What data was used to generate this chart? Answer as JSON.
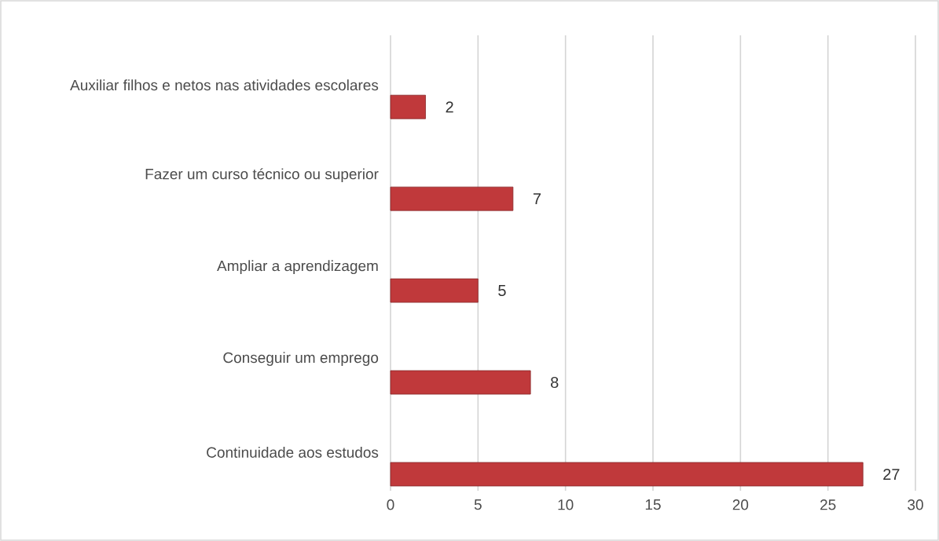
{
  "chart_data": {
    "type": "bar",
    "orientation": "horizontal",
    "categories": [
      "Auxiliar filhos e netos nas atividades escolares",
      "Fazer um curso técnico ou superior",
      "Ampliar a aprendizagem",
      "Conseguir um emprego",
      "Continuidade aos estudos"
    ],
    "values": [
      2,
      7,
      5,
      8,
      27
    ],
    "color": "#c0393b",
    "xlim": [
      0,
      30
    ],
    "xticks": [
      0,
      5,
      10,
      15,
      20,
      25,
      30
    ],
    "grid": "x",
    "data_labels": true
  }
}
